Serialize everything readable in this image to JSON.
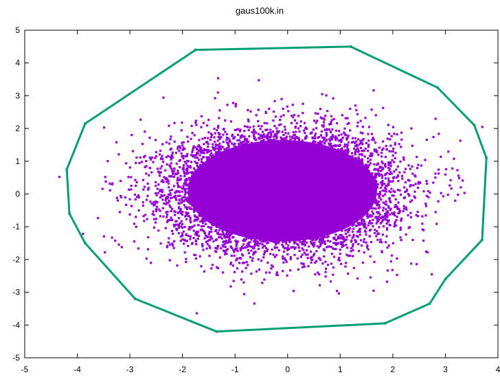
{
  "chart_data": {
    "type": "scatter",
    "title": "gaus100k.in",
    "xlim": [
      -5,
      4
    ],
    "ylim": [
      -5,
      5
    ],
    "xticks": [
      -5,
      -4,
      -3,
      -2,
      -1,
      0,
      1,
      2,
      3,
      4
    ],
    "yticks": [
      -5,
      -4,
      -3,
      -2,
      -1,
      0,
      1,
      2,
      3,
      4,
      5
    ],
    "grid": false,
    "legend": "none",
    "colors": {
      "points": "#9400d3",
      "hull": "#009e73"
    },
    "points_distribution": {
      "kind": "gaussian",
      "count": 100000,
      "x_mean": -0.1,
      "y_mean": 0.1,
      "x_std": 1.0,
      "y_std": 0.85
    },
    "hull": [
      [
        -1.75,
        4.4
      ],
      [
        1.2,
        4.5
      ],
      [
        2.85,
        3.25
      ],
      [
        3.55,
        2.1
      ],
      [
        3.78,
        1.1
      ],
      [
        3.7,
        -1.4
      ],
      [
        3.0,
        -2.6
      ],
      [
        2.7,
        -3.35
      ],
      [
        1.85,
        -3.95
      ],
      [
        -1.35,
        -4.2
      ],
      [
        -2.9,
        -3.2
      ],
      [
        -3.85,
        -1.5
      ],
      [
        -4.15,
        -0.6
      ],
      [
        -4.2,
        0.75
      ],
      [
        -3.85,
        2.15
      ],
      [
        -1.75,
        4.4
      ]
    ]
  }
}
